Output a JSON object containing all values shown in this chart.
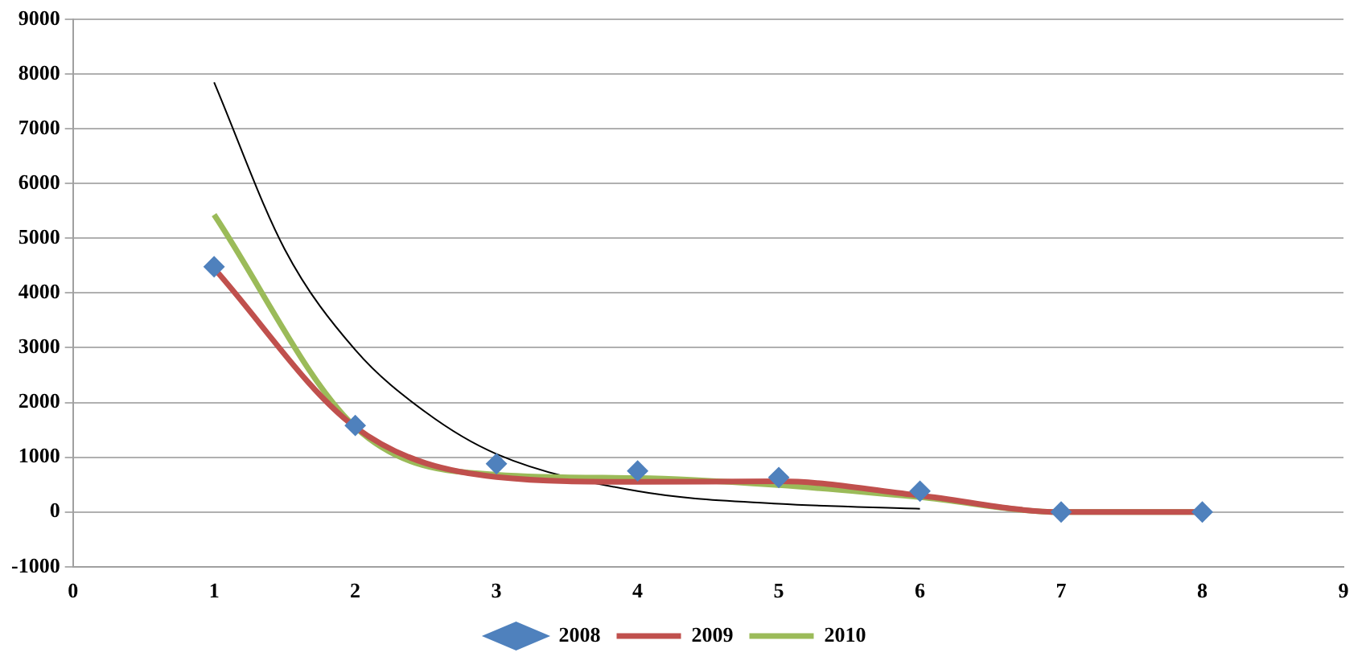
{
  "chart_data": {
    "type": "scatter",
    "xlim": [
      0,
      9
    ],
    "xticks": [
      0,
      1,
      2,
      3,
      4,
      5,
      6,
      7,
      8,
      9
    ],
    "ylim": [
      -1000,
      9000
    ],
    "yticks": [
      -1000,
      0,
      1000,
      2000,
      3000,
      4000,
      5000,
      6000,
      7000,
      8000,
      9000
    ],
    "grid": "y",
    "legend": "bottom",
    "series": [
      {
        "name": "2008",
        "type": "scatter",
        "marker": "diamond",
        "color": "#4f81bd",
        "x": [
          1,
          2,
          3,
          4,
          5,
          6,
          7,
          8
        ],
        "values": [
          4480,
          1580,
          880,
          750,
          630,
          380,
          0,
          0
        ]
      },
      {
        "name": "2009",
        "type": "line",
        "marker": "none",
        "color": "#c0504d",
        "x": [
          1,
          2,
          3,
          4,
          5,
          6,
          7,
          8
        ],
        "values": [
          4450,
          1550,
          640,
          550,
          560,
          300,
          0,
          0
        ]
      },
      {
        "name": "2010",
        "type": "line",
        "marker": "none",
        "color": "#9bbb59",
        "x": [
          1,
          2,
          3,
          4,
          5,
          6,
          7,
          8
        ],
        "values": [
          5430,
          1550,
          680,
          620,
          490,
          270,
          0,
          0
        ]
      },
      {
        "type": "line",
        "marker": "none",
        "color": "#000000",
        "x": [
          1,
          1.5,
          2,
          2.5,
          3,
          4,
          5,
          6
        ],
        "values": [
          7850,
          4800,
          2960,
          1820,
          1060,
          380,
          150,
          60
        ]
      }
    ]
  }
}
